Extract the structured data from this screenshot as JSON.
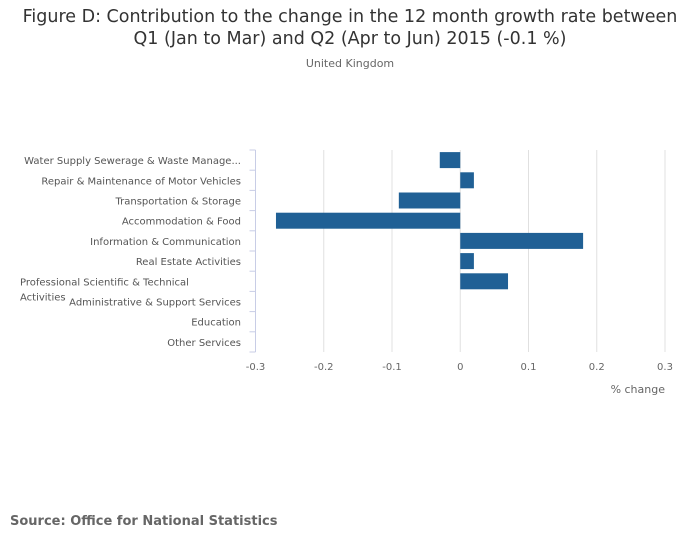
{
  "chart_data": {
    "type": "bar",
    "orientation": "horizontal",
    "title_line1": "Figure D: Contribution to the change in the 12 month growth rate between",
    "title_line2": "Q1 (Jan to Mar) and Q2 (Apr to Jun) 2015 (-0.1 %)",
    "subtitle": "United Kingdom",
    "xlabel": "% change",
    "ylabel": "",
    "xlim": [
      -0.3,
      0.3
    ],
    "xticks": [
      -0.3,
      -0.2,
      -0.1,
      0,
      0.1,
      0.2,
      0.3
    ],
    "xtick_labels": [
      "-0.3",
      "-0.2",
      "-0.1",
      "0",
      "0.1",
      "0.2",
      "0.3"
    ],
    "grid": true,
    "bar_color": "#206095",
    "categories": [
      "Water Supply Sewerage & Waste Manage...",
      "Repair & Maintenance of Motor Vehicles",
      "Transportation & Storage",
      "Accommodation & Food",
      "Information & Communication",
      "Real Estate Activities",
      "Professional Scientific & Technical Activities",
      "Administrative & Support Services",
      "Education",
      "Other Services"
    ],
    "values": [
      -0.03,
      0.02,
      -0.09,
      -0.27,
      0.18,
      0.02,
      0.07,
      0,
      0,
      0
    ]
  },
  "source": "Source: Office for National Statistics"
}
